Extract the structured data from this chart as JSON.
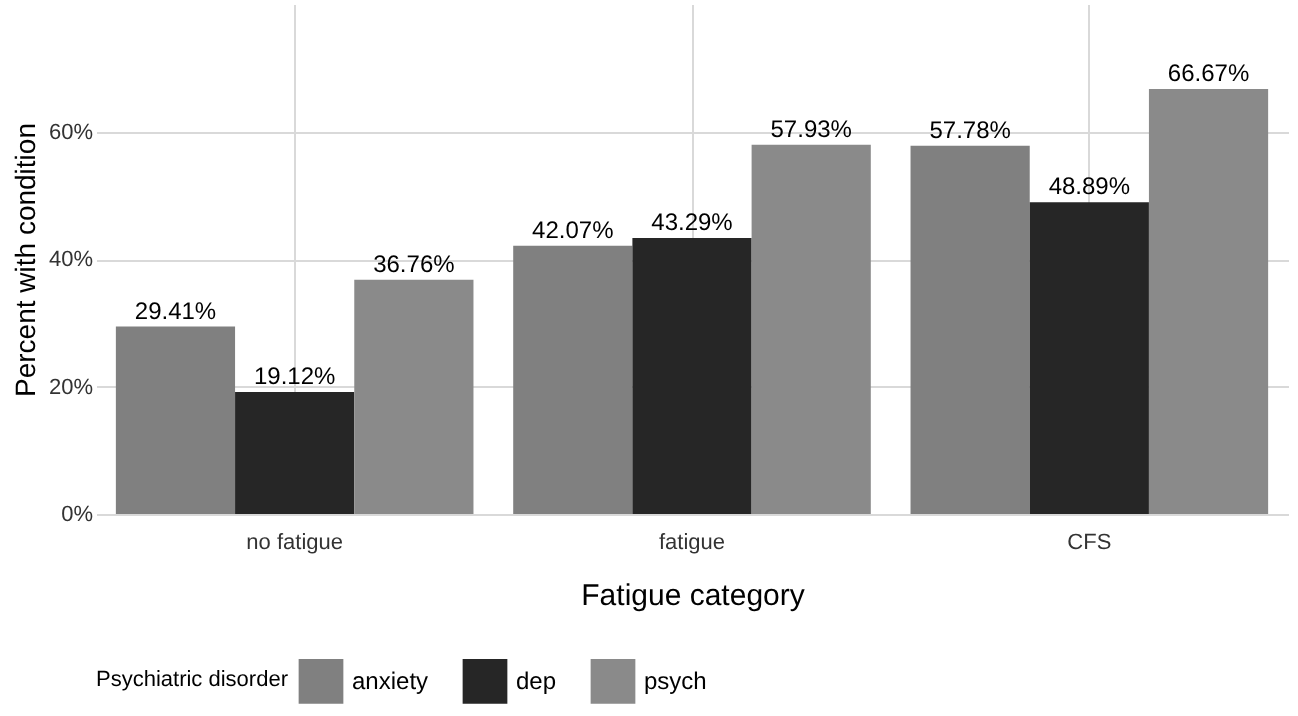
{
  "chart_data": {
    "type": "bar",
    "xlabel": "Fatigue category",
    "ylabel": "Percent with condition",
    "legend_title": "Psychiatric disorder",
    "categories": [
      "no fatigue",
      "fatigue",
      "CFS"
    ],
    "series": [
      {
        "name": "anxiety",
        "color": "#808080",
        "values": [
          29.41,
          42.07,
          57.78
        ],
        "value_labels": [
          "29.41%",
          "42.07%",
          "57.78%"
        ]
      },
      {
        "name": "dep",
        "color": "#262626",
        "values": [
          19.12,
          43.29,
          48.89
        ],
        "value_labels": [
          "19.12%",
          "43.29%",
          "48.89%"
        ]
      },
      {
        "name": "psych",
        "color": "#8a8a8a",
        "values": [
          36.76,
          57.93,
          66.67
        ],
        "value_labels": [
          "36.76%",
          "57.93%",
          "66.67%"
        ]
      }
    ],
    "ylim": [
      0,
      80
    ],
    "yticks": [
      {
        "value": 0,
        "label": "0%"
      },
      {
        "value": 20,
        "label": "20%"
      },
      {
        "value": 40,
        "label": "40%"
      },
      {
        "value": 60,
        "label": "60%"
      }
    ],
    "grid": true,
    "legend": "bottom"
  }
}
